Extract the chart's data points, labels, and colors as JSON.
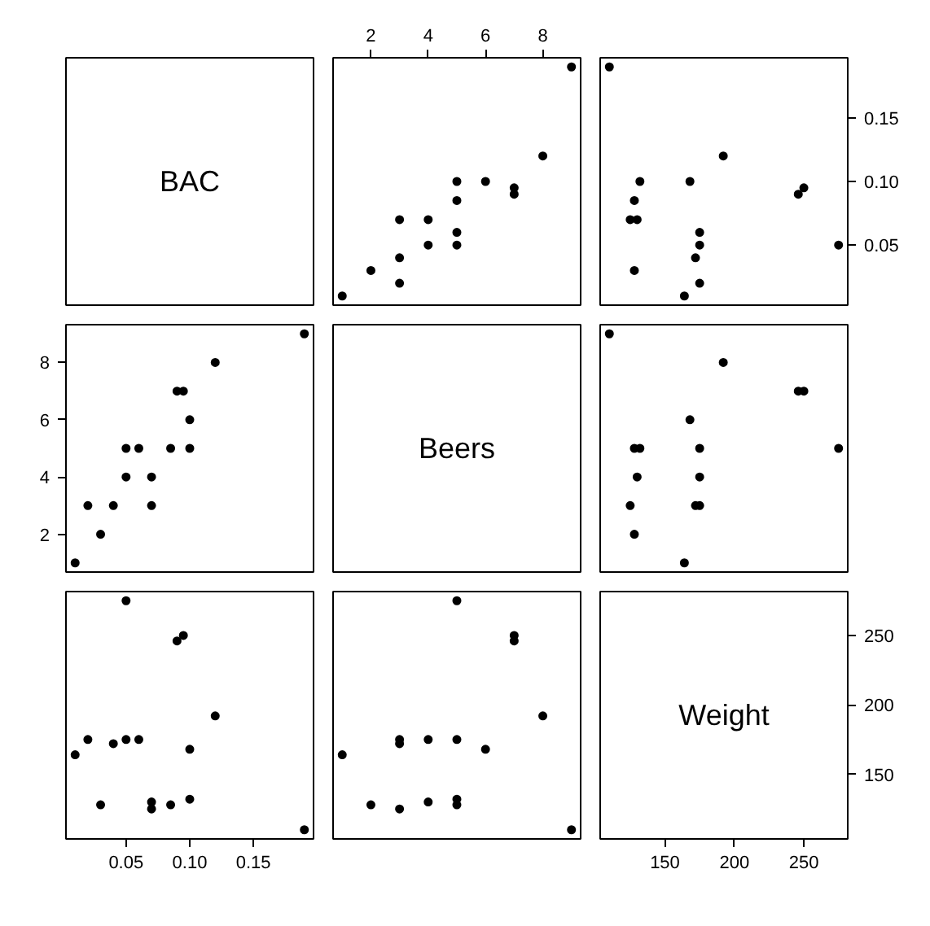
{
  "chart_data": [
    {
      "type": "other",
      "title": "BAC"
    },
    {
      "type": "scatter",
      "x": [
        5,
        2,
        9,
        8,
        3,
        7,
        3,
        5,
        3,
        5,
        4,
        6,
        5,
        7,
        1,
        4
      ],
      "values": [
        0.1,
        0.03,
        0.19,
        0.12,
        0.04,
        0.095,
        0.07,
        0.06,
        0.02,
        0.05,
        0.07,
        0.1,
        0.085,
        0.09,
        0.01,
        0.05
      ],
      "color": "#000000",
      "marker": "circle",
      "grid": false,
      "xlim": [
        0.68,
        9.32
      ],
      "xticks": [
        2,
        4,
        6,
        8
      ],
      "ylim": [
        0.0028,
        0.1972
      ],
      "tick_labels": "x"
    },
    {
      "type": "scatter",
      "x": [
        132,
        128,
        110,
        192,
        172,
        250,
        125,
        175,
        175,
        275,
        130,
        168,
        128,
        246,
        164,
        175
      ],
      "values": [
        0.1,
        0.03,
        0.19,
        0.12,
        0.04,
        0.095,
        0.07,
        0.06,
        0.02,
        0.05,
        0.07,
        0.1,
        0.085,
        0.09,
        0.01,
        0.05
      ],
      "color": "#000000",
      "marker": "circle",
      "grid": false,
      "xlim": [
        103.4,
        281.6
      ],
      "ylim": [
        0.0028,
        0.1972
      ],
      "yticks": [
        0.05,
        {
          "value": 0.1,
          "label": "0.10"
        },
        0.15
      ],
      "tick_labels": "y"
    },
    {
      "type": "scatter",
      "x": [
        0.1,
        0.03,
        0.19,
        0.12,
        0.04,
        0.095,
        0.07,
        0.06,
        0.02,
        0.05,
        0.07,
        0.1,
        0.085,
        0.09,
        0.01,
        0.05
      ],
      "values": [
        5,
        2,
        9,
        8,
        3,
        7,
        3,
        5,
        3,
        5,
        4,
        6,
        5,
        7,
        1,
        4
      ],
      "color": "#000000",
      "marker": "circle",
      "grid": false,
      "xlim": [
        0.0028,
        0.1972
      ],
      "ylim": [
        0.68,
        9.32
      ],
      "yticks": [
        2,
        4,
        6,
        8
      ],
      "tick_labels": "y"
    },
    {
      "type": "other",
      "title": "Beers"
    },
    {
      "type": "scatter",
      "x": [
        132,
        128,
        110,
        192,
        172,
        250,
        125,
        175,
        175,
        275,
        130,
        168,
        128,
        246,
        164,
        175
      ],
      "values": [
        5,
        2,
        9,
        8,
        3,
        7,
        3,
        5,
        3,
        5,
        4,
        6,
        5,
        7,
        1,
        4
      ],
      "color": "#000000",
      "marker": "circle",
      "grid": false,
      "xlim": [
        103.4,
        281.6
      ],
      "ylim": [
        0.68,
        9.32
      ],
      "tick_labels": false
    },
    {
      "type": "scatter",
      "x": [
        0.1,
        0.03,
        0.19,
        0.12,
        0.04,
        0.095,
        0.07,
        0.06,
        0.02,
        0.05,
        0.07,
        0.1,
        0.085,
        0.09,
        0.01,
        0.05
      ],
      "values": [
        132,
        128,
        110,
        192,
        172,
        250,
        125,
        175,
        175,
        275,
        130,
        168,
        128,
        246,
        164,
        175
      ],
      "color": "#000000",
      "marker": "circle",
      "grid": false,
      "xlim": [
        0.0028,
        0.1972
      ],
      "xticks": [
        0.05,
        {
          "value": 0.1,
          "label": "0.10"
        },
        0.15
      ],
      "ylim": [
        103.4,
        281.6
      ],
      "tick_labels": "x"
    },
    {
      "type": "scatter",
      "x": [
        5,
        2,
        9,
        8,
        3,
        7,
        3,
        5,
        3,
        5,
        4,
        6,
        5,
        7,
        1,
        4
      ],
      "values": [
        132,
        128,
        110,
        192,
        172,
        250,
        125,
        175,
        175,
        275,
        130,
        168,
        128,
        246,
        164,
        175
      ],
      "color": "#000000",
      "marker": "circle",
      "grid": false,
      "xlim": [
        0.68,
        9.32
      ],
      "ylim": [
        103.4,
        281.6
      ],
      "tick_labels": false
    },
    {
      "type": "scatter",
      "title": "Weight",
      "xlim": [
        103.4,
        281.6
      ],
      "xticks": [
        150,
        200,
        250
      ],
      "ylim": [
        103.4,
        281.6
      ],
      "yticks": [
        150,
        200,
        250
      ]
    }
  ]
}
